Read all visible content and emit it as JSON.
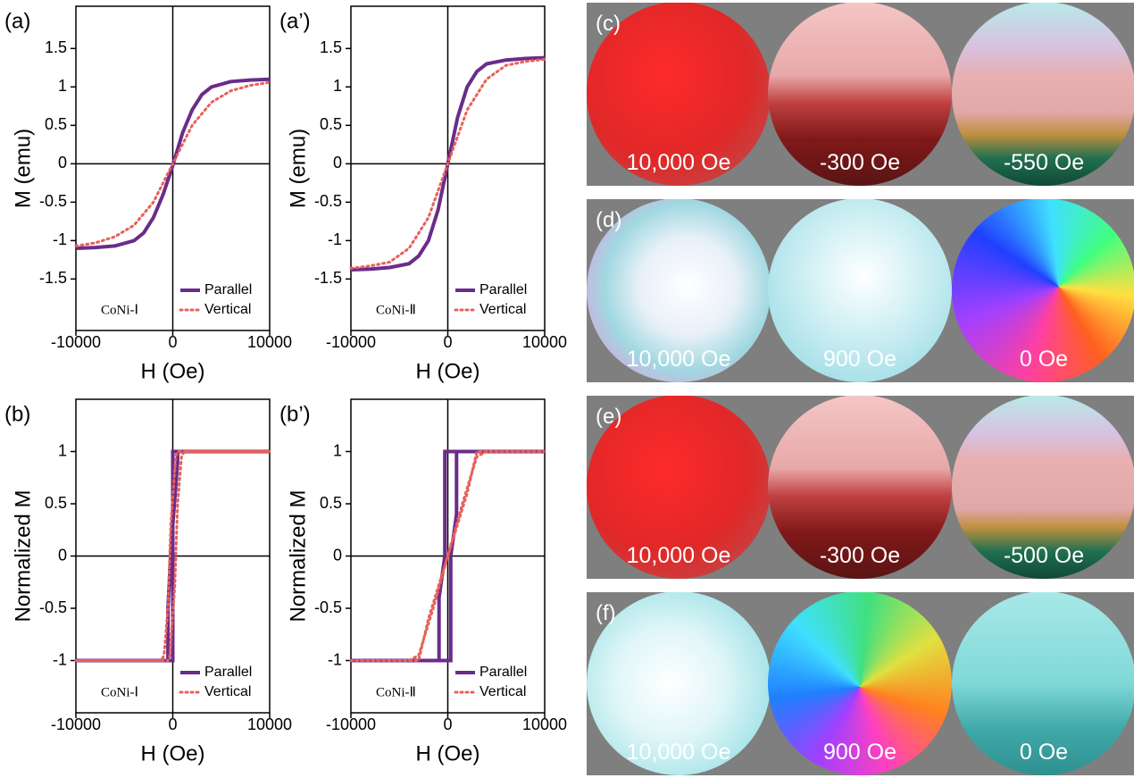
{
  "chart_data": [
    {
      "type": "line",
      "panel_label": "(a)",
      "xlabel": "H (Oe)",
      "ylabel": "M (emu)",
      "sample_label": "CoNi-Ⅰ",
      "xlim": [
        -10000,
        10000
      ],
      "xticks": [
        -10000,
        0,
        10000
      ],
      "ylim": [
        -2.17,
        2.05
      ],
      "yticks": [
        -1.5,
        -1,
        -0.5,
        0,
        0.5,
        1,
        1.5
      ],
      "series": [
        {
          "name": "Parallel",
          "color": "#6a2c8a",
          "x": [
            -10000,
            -8000,
            -6000,
            -4000,
            -3000,
            -2000,
            -1000,
            0,
            1000,
            2000,
            3000,
            4000,
            6000,
            8000,
            10000
          ],
          "values": [
            -1.1,
            -1.09,
            -1.07,
            -1.0,
            -0.9,
            -0.7,
            -0.4,
            -0.02,
            0.4,
            0.7,
            0.9,
            1.0,
            1.07,
            1.09,
            1.1
          ]
        },
        {
          "name": "Vertical",
          "color": "#e8605a",
          "x": [
            -10000,
            -8000,
            -6000,
            -4000,
            -2000,
            0,
            2000,
            4000,
            6000,
            8000,
            10000
          ],
          "values": [
            -1.07,
            -1.03,
            -0.95,
            -0.8,
            -0.5,
            0,
            0.5,
            0.8,
            0.95,
            1.02,
            1.06
          ]
        }
      ]
    },
    {
      "type": "line",
      "panel_label": "(a’)",
      "xlabel": "H (Oe)",
      "ylabel": "M (emu)",
      "sample_label": "CoNi-Ⅱ",
      "xlim": [
        -10000,
        10000
      ],
      "xticks": [
        -10000,
        0,
        10000
      ],
      "ylim": [
        -2.17,
        2.05
      ],
      "yticks": [
        -1.5,
        -1,
        -0.5,
        0,
        0.5,
        1,
        1.5
      ],
      "series": [
        {
          "name": "Parallel",
          "color": "#6a2c8a",
          "x": [
            -10000,
            -8000,
            -6000,
            -4000,
            -3000,
            -2000,
            -1000,
            0,
            1000,
            2000,
            3000,
            4000,
            6000,
            8000,
            10000
          ],
          "values": [
            -1.38,
            -1.37,
            -1.35,
            -1.3,
            -1.2,
            -1.0,
            -0.6,
            0,
            0.6,
            1.0,
            1.2,
            1.3,
            1.35,
            1.37,
            1.38
          ]
        },
        {
          "name": "Vertical",
          "color": "#e8605a",
          "x": [
            -10000,
            -8000,
            -6000,
            -4000,
            -2000,
            0,
            2000,
            4000,
            6000,
            8000,
            10000
          ],
          "values": [
            -1.36,
            -1.33,
            -1.28,
            -1.1,
            -0.7,
            0,
            0.7,
            1.1,
            1.28,
            1.33,
            1.36
          ]
        }
      ]
    },
    {
      "type": "line",
      "panel_label": "(b)",
      "xlabel": "H (Oe)",
      "ylabel": "Normalized M",
      "sample_label": "CoNi-Ⅰ",
      "xlim": [
        -10000,
        10000
      ],
      "xticks": [
        -10000,
        0,
        10000
      ],
      "ylim": [
        -1.5,
        1.5
      ],
      "yticks": [
        -1,
        -0.5,
        0,
        0.5,
        1
      ],
      "series": [
        {
          "name": "Parallel",
          "color": "#6a2c8a",
          "x": [
            -10000,
            0,
            0,
            500,
            500,
            10000,
            10000,
            0,
            0,
            -500,
            -500,
            -10000
          ],
          "values": [
            -1,
            -1,
            0.3,
            0.9,
            1,
            1,
            1,
            1,
            0.4,
            -0.5,
            -1,
            -1
          ]
        },
        {
          "name": "Vertical",
          "color": "#e8605a",
          "x": [
            -10000,
            -500,
            -300,
            200,
            500,
            900,
            1200,
            10000,
            10000,
            500,
            300,
            -200,
            -500,
            -900,
            -1200,
            -10000
          ],
          "values": [
            -1,
            -1,
            -0.95,
            -0.3,
            0.5,
            0.95,
            1,
            1,
            1,
            1,
            0.95,
            0.3,
            -0.5,
            -0.95,
            -1,
            -1
          ]
        }
      ]
    },
    {
      "type": "line",
      "panel_label": "(b’)",
      "xlabel": "H (Oe)",
      "ylabel": "Normalized M",
      "sample_label": "CoNi-Ⅱ",
      "xlim": [
        -10000,
        10000
      ],
      "xticks": [
        -10000,
        0,
        10000
      ],
      "ylim": [
        -1.5,
        1.5
      ],
      "yticks": [
        -1,
        -0.5,
        0,
        0.5,
        1
      ],
      "series": [
        {
          "name": "Parallel",
          "color": "#6a2c8a",
          "x": [
            -10000,
            300,
            300,
            900,
            900,
            10000,
            10000,
            -300,
            -300,
            -900,
            -900,
            -10000
          ],
          "values": [
            -1,
            -1,
            0,
            0.4,
            1,
            1,
            1,
            1,
            0,
            -0.4,
            -1,
            -1
          ]
        },
        {
          "name": "Vertical",
          "color": "#e8605a",
          "x": [
            -10000,
            -3000,
            -2000,
            0,
            1500,
            3000,
            4000,
            10000,
            10000,
            3000,
            2000,
            0,
            -1500,
            -3000,
            -4000,
            -10000
          ],
          "values": [
            -1,
            -1,
            -0.6,
            0,
            0.5,
            0.95,
            1,
            1,
            1,
            1,
            0.6,
            0,
            -0.5,
            -0.95,
            -1,
            -1
          ]
        }
      ]
    }
  ],
  "image_panels": [
    {
      "label": "(c)",
      "fields": [
        "10,000 Oe",
        "-300 Oe",
        "-550 Oe"
      ]
    },
    {
      "label": "(d)",
      "fields": [
        "10,000 Oe",
        "900 Oe",
        "0 Oe"
      ]
    },
    {
      "label": "(e)",
      "fields": [
        "10,000 Oe",
        "-300 Oe",
        "-500 Oe"
      ]
    },
    {
      "label": "(f)",
      "fields": [
        "10,000 Oe",
        "900 Oe",
        "0 Oe"
      ]
    }
  ]
}
